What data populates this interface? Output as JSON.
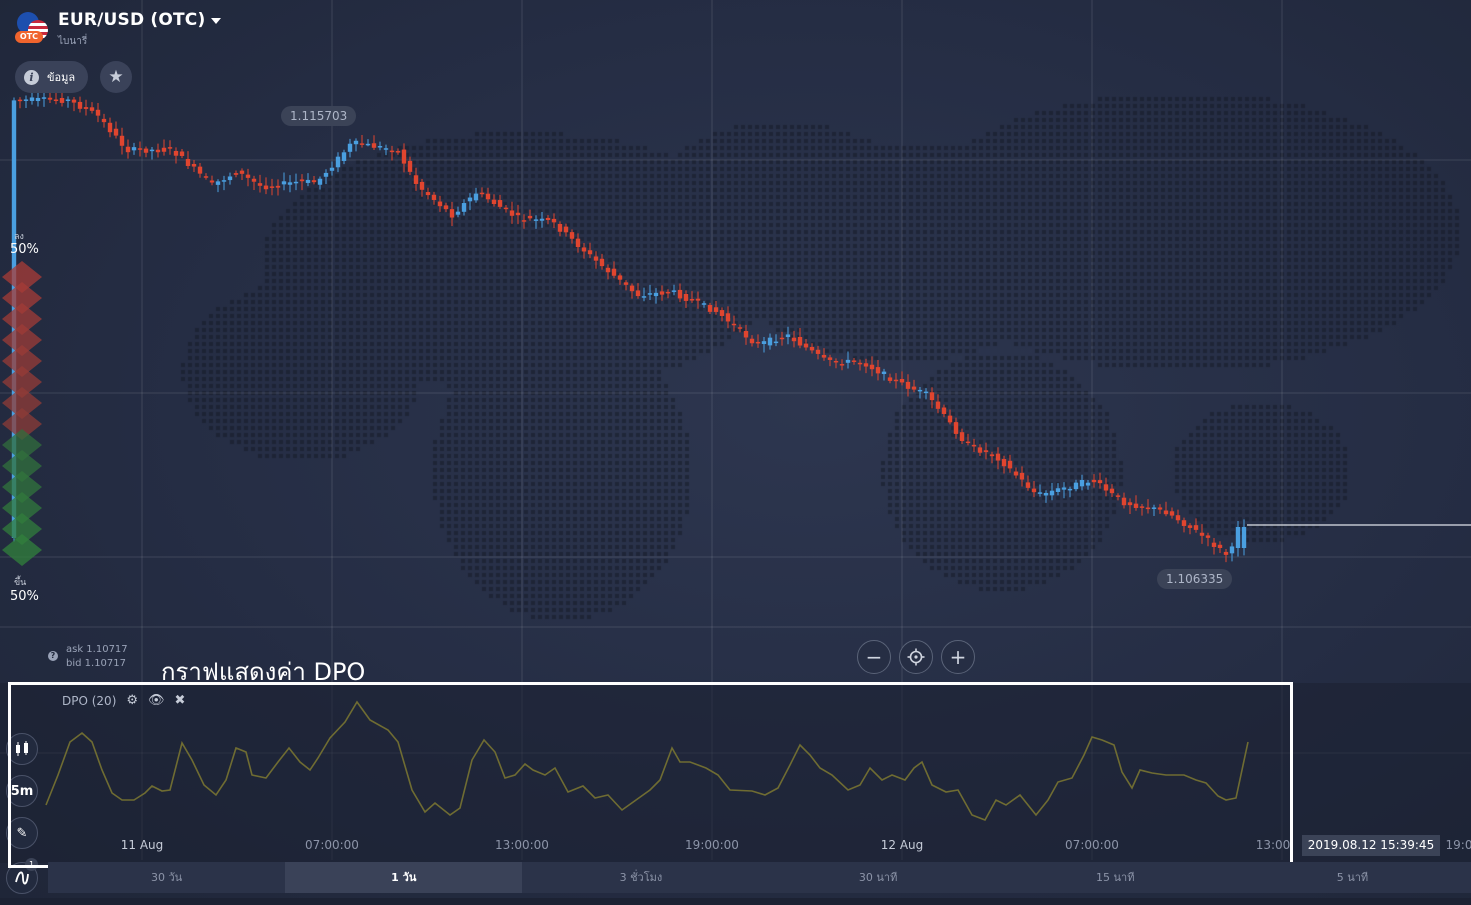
{
  "asset": {
    "title": "EUR/USD (OTC)",
    "subtitle": "ไบนารี่",
    "badge": "OTC"
  },
  "toolbar": {
    "info_label": "ข้อมูล"
  },
  "price_tags": {
    "high": "1.115703",
    "low": "1.106335"
  },
  "sentiment": {
    "down_label": "ลง",
    "down_pct": "50%",
    "up_label": "ขึ้น",
    "up_pct": "50%"
  },
  "quote": {
    "ask": "ask 1.10717",
    "bid": "bid 1.10717"
  },
  "annotation": {
    "dpo_caption": "กราฟแสดงค่า DPO"
  },
  "indicator": {
    "label": "DPO (20)"
  },
  "time_axis": [
    "11 Aug",
    "07:00:00",
    "13:00:00",
    "19:00:00",
    "12 Aug",
    "07:00:00",
    "13:00",
    "19:0"
  ],
  "current_time": "2019.08.12 15:39:45",
  "periods": [
    {
      "label": "30 วัน",
      "active": false
    },
    {
      "label": "1 วัน",
      "active": true
    },
    {
      "label": "3 ชั่วโมง",
      "active": false
    },
    {
      "label": "30 นาที",
      "active": false
    },
    {
      "label": "15 นาที",
      "active": false
    },
    {
      "label": "5 นาที",
      "active": false
    }
  ],
  "chart_mode": {
    "interval": "5m",
    "badge": "1"
  },
  "colors": {
    "up": "#4a9fe0",
    "down": "#e0452f",
    "dpo": "#d4c733",
    "background": "#252d44"
  },
  "chart_data": {
    "type": "candlestick",
    "y_range": [
      1.1063,
      1.1159
    ],
    "start_price": 1.1154,
    "end_price": 1.10717,
    "dpo_period": 20
  }
}
